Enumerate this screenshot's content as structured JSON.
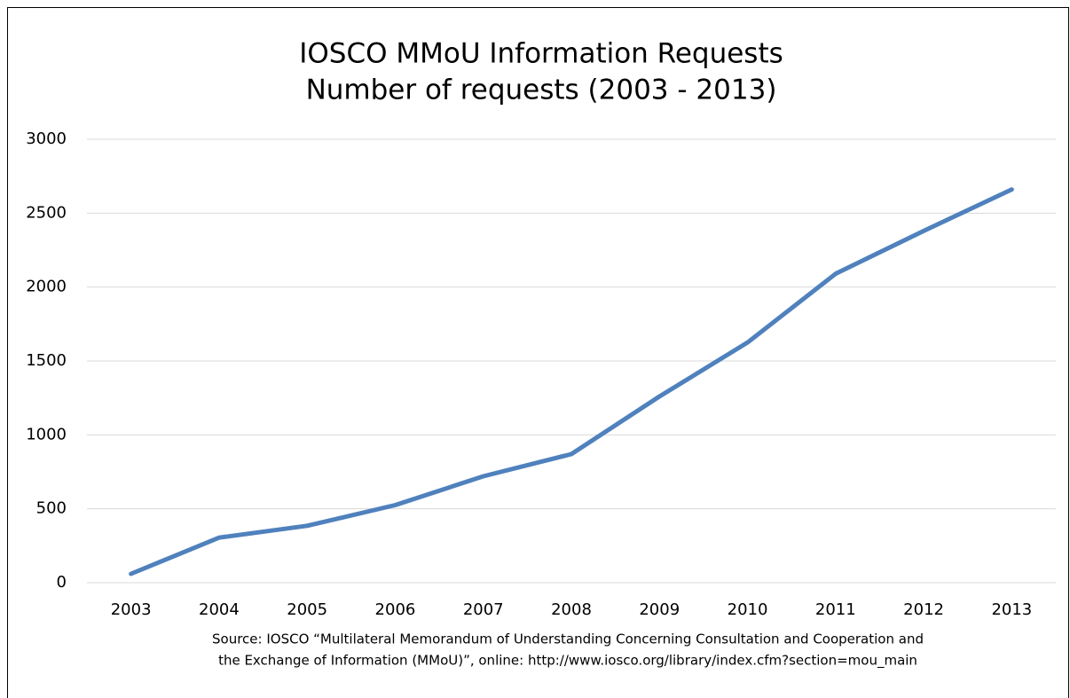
{
  "chart_data": {
    "type": "line",
    "title": "IOSCO MMoU Information Requests",
    "subtitle": "Number of requests (2003 - 2013)",
    "categories": [
      "2003",
      "2004",
      "2005",
      "2006",
      "2007",
      "2008",
      "2009",
      "2010",
      "2011",
      "2012",
      "2013"
    ],
    "series": [
      {
        "name": "Number of requests",
        "color": "#4f81bd",
        "values": [
          60,
          305,
          385,
          525,
          720,
          870,
          1260,
          1625,
          2090,
          2380,
          2660
        ]
      }
    ],
    "ylim": [
      0,
      3000
    ],
    "yticks": [
      0,
      500,
      1000,
      1500,
      2000,
      2500,
      3000
    ],
    "grid": true,
    "annotations": [
      "Source: IOSCO “Multilateral Memorandum of Understanding Concerning Consultation and Cooperation and",
      "the Exchange of Information (MMoU)”, online:  http://www.iosco.org/library/index.cfm?section=mou_main"
    ]
  }
}
